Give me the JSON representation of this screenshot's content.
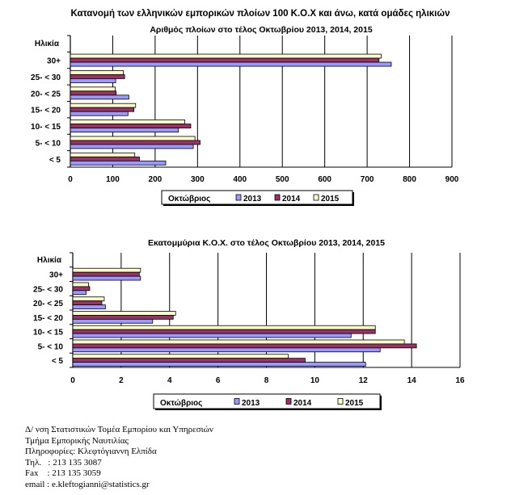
{
  "title": "Κατανομή των ελληνικών εμπορικών πλοίων 100 Κ.Ο.Χ και άνω, κατά ομάδες ηλικιών",
  "colors": {
    "2013": "#9999ff",
    "2014": "#993366",
    "2015": "#ffffcc"
  },
  "chart_data": [
    {
      "type": "bar",
      "orientation": "horizontal",
      "title": "Αριθμός πλοίων στο τέλος Οκτωβρίου 2013, 2014, 2015",
      "ylabel": "Ηλικία",
      "xlim": [
        0,
        900
      ],
      "xticks": [
        "0",
        "100",
        "200",
        "300",
        "400",
        "500",
        "600",
        "700",
        "800",
        "900"
      ],
      "categories": [
        "30+",
        "25- < 30",
        "20- < 25",
        "15- < 20",
        "10- < 15",
        "5- < 10",
        "<  5"
      ],
      "legend_title": "Οκτώβριος",
      "grid": true,
      "legend_placement": "bottom",
      "series": [
        {
          "name": "2013",
          "values": [
            757,
            107,
            138,
            136,
            255,
            290,
            225
          ]
        },
        {
          "name": "2014",
          "values": [
            728,
            128,
            108,
            150,
            284,
            306,
            163
          ]
        },
        {
          "name": "2015",
          "values": [
            733,
            125,
            106,
            154,
            270,
            294,
            152
          ]
        }
      ]
    },
    {
      "type": "bar",
      "orientation": "horizontal",
      "title": "Εκατομμύρια Κ.Ο.Χ. στο τέλος Οκτωβρίου 2013, 2014, 2015",
      "ylabel": "Ηλικία",
      "xlim": [
        0,
        16
      ],
      "xticks": [
        "0",
        "2",
        "4",
        "6",
        "8",
        "10",
        "12",
        "14",
        "16"
      ],
      "categories": [
        "30+",
        "25- < 30",
        "20- < 25",
        "15- < 20",
        "10- < 15",
        "5- < 10",
        "<  5"
      ],
      "legend_title": "Οκτώβριος",
      "grid": true,
      "legend_placement": "bottom",
      "series": [
        {
          "name": "2013",
          "values": [
            2.8,
            0.55,
            1.35,
            3.3,
            11.5,
            12.7,
            12.1
          ]
        },
        {
          "name": "2014",
          "values": [
            2.75,
            0.7,
            1.2,
            4.15,
            12.5,
            14.2,
            9.6
          ]
        },
        {
          "name": "2015",
          "values": [
            2.8,
            0.65,
            1.3,
            4.25,
            12.5,
            13.7,
            8.9
          ]
        }
      ]
    }
  ],
  "footer": [
    "Δ/ νση Στατιστικών Τομέα Εμπορίου και Υπηρεσιών",
    "Τμήμα Εμπορικής Ναυτιλίας",
    "Πληροφορίες: Κλεφτόγιαννη Ελπίδα",
    "Τηλ.   : 213 135 3087",
    "Fax    : 213 135 3059",
    "email : e.kleftogianni@statistics.gr"
  ]
}
